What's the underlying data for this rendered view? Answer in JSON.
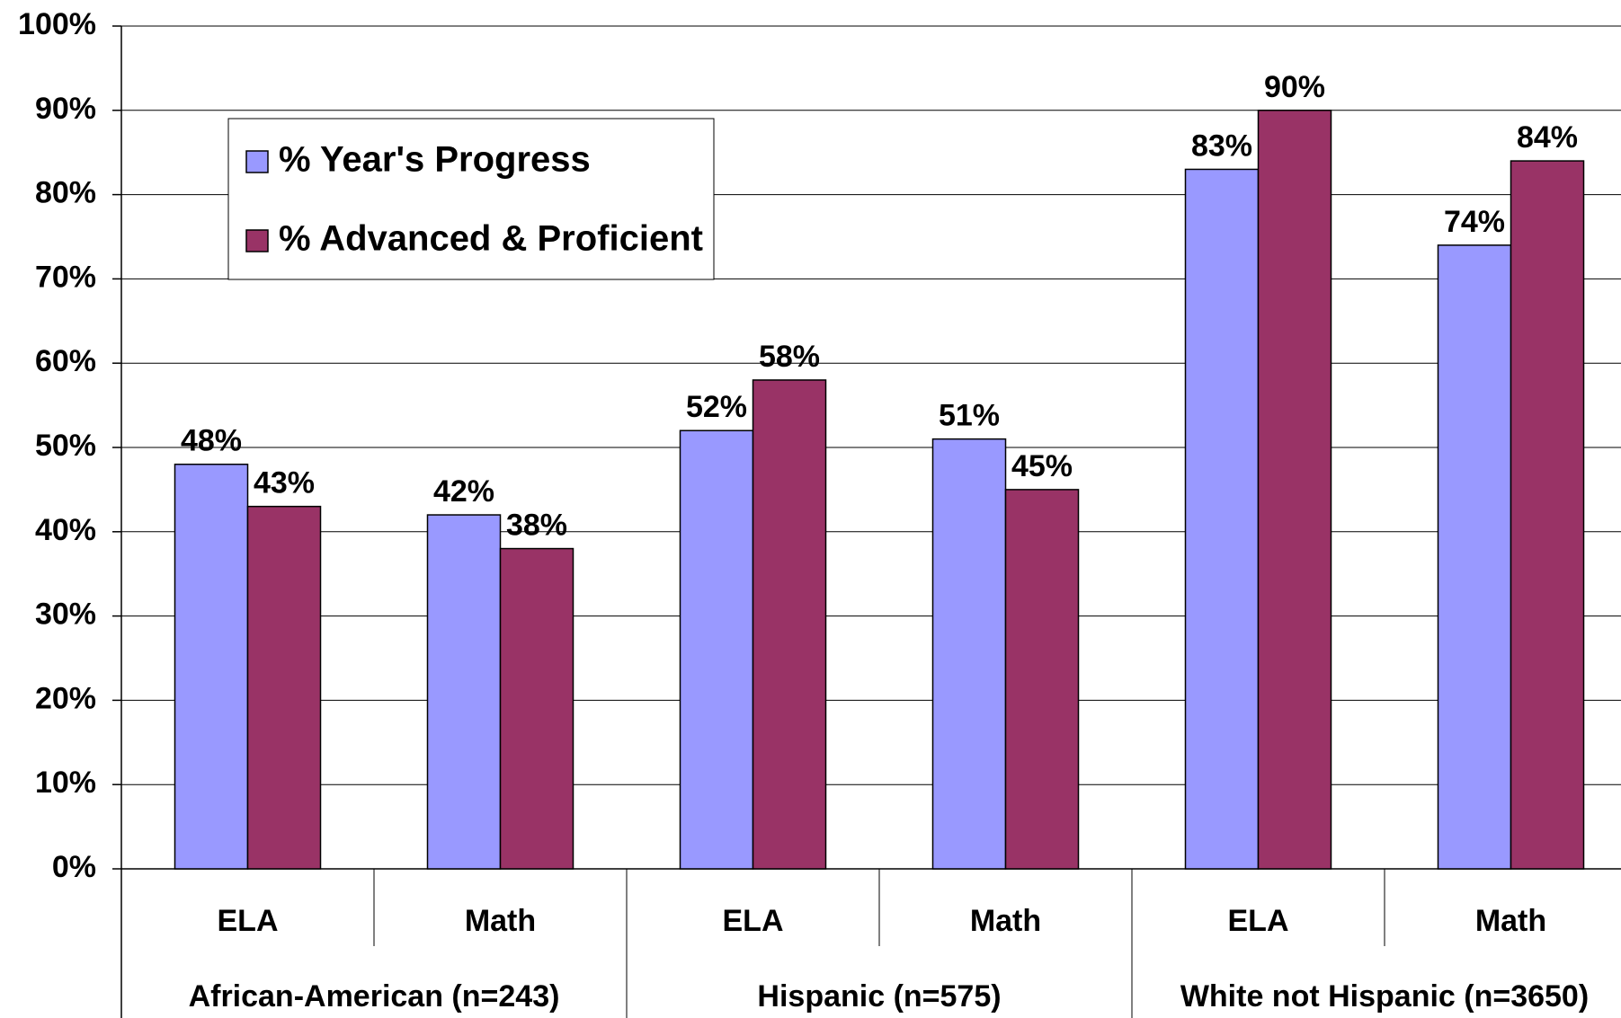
{
  "chart_data": {
    "type": "bar",
    "categories": [
      "ELA",
      "Math",
      "ELA",
      "Math",
      "ELA",
      "Math"
    ],
    "category_groups": [
      "African-American (n=243)",
      "Hispanic (n=575)",
      "White not Hispanic (n=3650)"
    ],
    "series": [
      {
        "name": "% Year's Progress",
        "color": "#9999ff",
        "values": [
          48,
          42,
          52,
          51,
          83,
          74
        ],
        "value_labels": [
          "48%",
          "42%",
          "52%",
          "51%",
          "83%",
          "74%"
        ]
      },
      {
        "name": "% Advanced & Proficient",
        "color": "#993366",
        "values": [
          43,
          38,
          58,
          45,
          90,
          84
        ],
        "value_labels": [
          "43%",
          "38%",
          "58%",
          "45%",
          "90%",
          "84%"
        ]
      }
    ],
    "ylim": [
      0,
      100
    ],
    "yticks": [
      {
        "value": 0,
        "label": "0%"
      },
      {
        "value": 10,
        "label": "10%"
      },
      {
        "value": 20,
        "label": "20%"
      },
      {
        "value": 30,
        "label": "30%"
      },
      {
        "value": 40,
        "label": "40%"
      },
      {
        "value": 50,
        "label": "50%"
      },
      {
        "value": 60,
        "label": "60%"
      },
      {
        "value": 70,
        "label": "70%"
      },
      {
        "value": 80,
        "label": "80%"
      },
      {
        "value": 90,
        "label": "90%"
      },
      {
        "value": 100,
        "label": "100%"
      }
    ],
    "grid": true,
    "legend": "upper left"
  }
}
